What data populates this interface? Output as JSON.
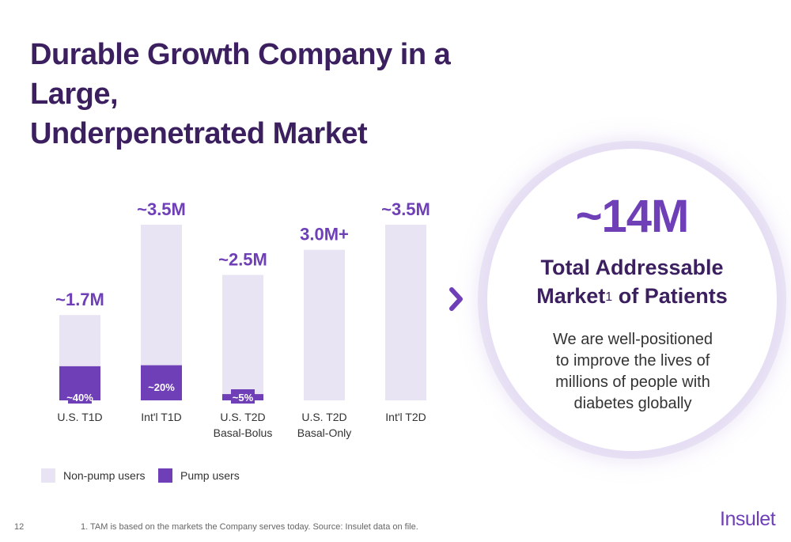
{
  "title_lines": [
    "Durable Growth Company in a Large,",
    "Underpenetrated Market"
  ],
  "chart_data": {
    "type": "bar",
    "stacked": true,
    "categories": [
      [
        "U.S. T1D"
      ],
      [
        "Int'l T1D"
      ],
      [
        "U.S. T2D",
        "Basal-Bolus"
      ],
      [
        "U.S. T2D",
        "Basal-Only"
      ],
      [
        "Int'l T2D"
      ]
    ],
    "totals": [
      1.7,
      3.5,
      2.5,
      3.0,
      3.5
    ],
    "total_labels": [
      "~1.7M",
      "~3.5M",
      "~2.5M",
      "3.0M+",
      "~3.5M"
    ],
    "pump_share": [
      0.4,
      0.2,
      0.05,
      0,
      0
    ],
    "pump_labels": [
      "~40%",
      "~20%",
      "~5%",
      "",
      ""
    ],
    "series": [
      {
        "name": "Non-pump users",
        "color": "#e9e4f4"
      },
      {
        "name": "Pump users",
        "color": "#6f3fb8"
      }
    ],
    "unit": "M",
    "ylim": [
      0,
      3.5
    ],
    "grid": false,
    "legend_position": "bottom-left"
  },
  "tam": {
    "value": "~14M",
    "title_line1": "Total Addressable",
    "title_line2": "Market",
    "footnote_marker": "1",
    "title_line2_suffix": " of Patients",
    "description_lines": [
      "We are well-positioned",
      "to improve the lives of",
      "millions of people with",
      "diabetes globally"
    ]
  },
  "footer": {
    "page_number": "12",
    "footnote": "1.   TAM is based on the markets the Company serves today. Source: Insulet data on file.",
    "logo": "Insulet"
  },
  "colors": {
    "title": "#3b1f5f",
    "accent": "#6f3fb8",
    "light_bar": "#e9e4f4"
  },
  "icons": {
    "arrow": "chevron-right-icon"
  }
}
